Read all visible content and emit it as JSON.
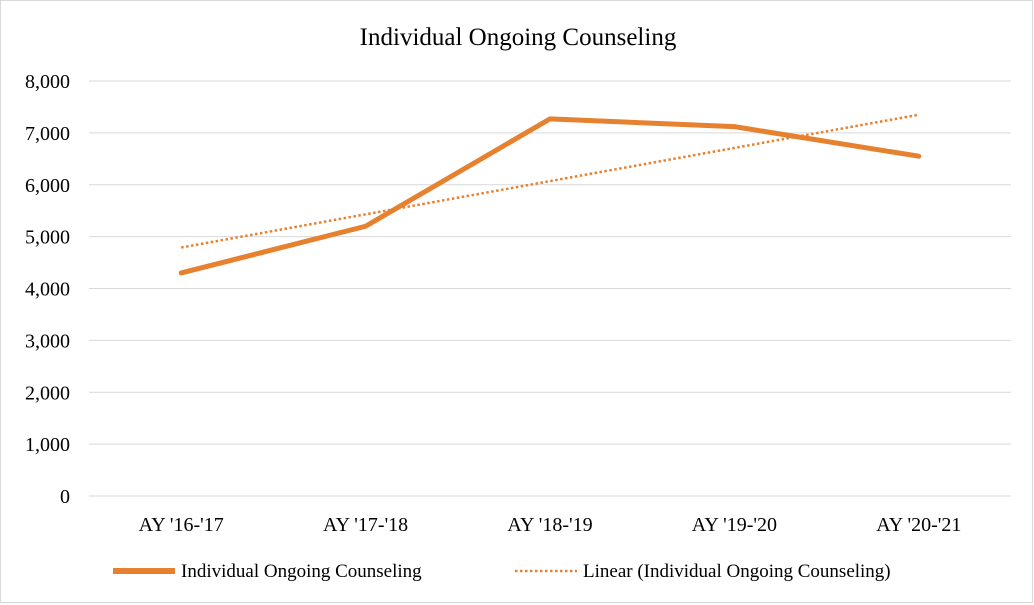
{
  "chart_data": {
    "type": "line",
    "title": "Individual Ongoing Counseling",
    "xlabel": "",
    "ylabel": "",
    "categories": [
      "AY '16-'17",
      "AY '17-'18",
      "AY '18-'19",
      "AY '19-'20",
      "AY '20-'21"
    ],
    "ylim": [
      0,
      8000
    ],
    "yticks": [
      0,
      1000,
      2000,
      3000,
      4000,
      5000,
      6000,
      7000,
      8000
    ],
    "ytick_labels": [
      "0",
      "1,000",
      "2,000",
      "3,000",
      "4,000",
      "5,000",
      "6,000",
      "7,000",
      "8,000"
    ],
    "grid": true,
    "legend_position": "bottom",
    "series": [
      {
        "name": "Individual Ongoing Counseling",
        "values": [
          4300,
          5200,
          7270,
          7120,
          6550
        ],
        "color": "#E5812F",
        "style": "solid"
      },
      {
        "name": "Linear (Individual Ongoing Counseling)",
        "values": [
          4790,
          5430,
          6070,
          6710,
          7350
        ],
        "color": "#E5812F",
        "style": "dotted"
      }
    ]
  }
}
